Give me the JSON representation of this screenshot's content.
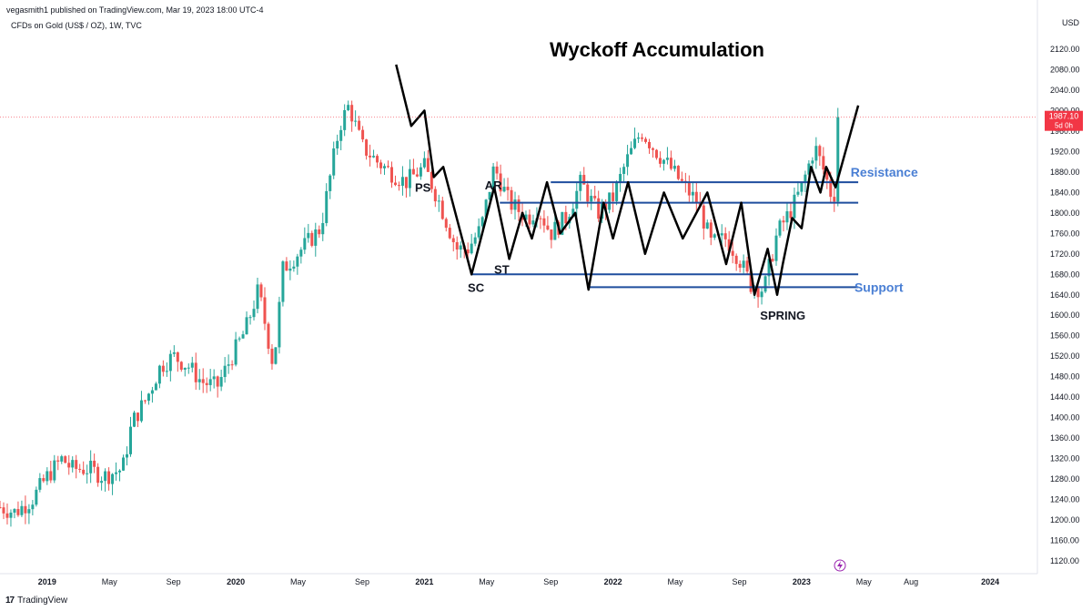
{
  "header": {
    "published": "vegasmith1 published on TradingView.com, Mar 19, 2023 18:00 UTC-4",
    "symbol": "CFDs on Gold (US$ / OZ), 1W, TVC",
    "currency": "USD"
  },
  "footer": {
    "brand": "TradingView",
    "logo_glyph": "17"
  },
  "price_tag": {
    "value": "1987.10",
    "countdown": "5d 0h"
  },
  "colors": {
    "up": "#26a69a",
    "down": "#ef5350",
    "annotation_line": "#1f4e9e",
    "path": "#000000",
    "accent_label": "#4a7fd4",
    "last_price": "#f23645"
  },
  "chart_data": {
    "type": "candlestick",
    "title": "Wyckoff Accumulation",
    "xlabel": "",
    "ylabel": "USD",
    "ylim": [
      1100,
      2160
    ],
    "y_ticks": [
      1120,
      1160,
      1200,
      1240,
      1280,
      1320,
      1360,
      1400,
      1440,
      1480,
      1520,
      1560,
      1600,
      1640,
      1680,
      1720,
      1760,
      1800,
      1840,
      1880,
      1920,
      1960,
      2000,
      2040,
      2080,
      2120
    ],
    "x_ticks": [
      {
        "label": "2019",
        "t": 2019.0,
        "bold": true
      },
      {
        "label": "May",
        "t": 2019.33,
        "bold": false
      },
      {
        "label": "Sep",
        "t": 2019.67,
        "bold": false
      },
      {
        "label": "2020",
        "t": 2020.0,
        "bold": true
      },
      {
        "label": "May",
        "t": 2020.33,
        "bold": false
      },
      {
        "label": "Sep",
        "t": 2020.67,
        "bold": false
      },
      {
        "label": "2021",
        "t": 2021.0,
        "bold": true
      },
      {
        "label": "May",
        "t": 2021.33,
        "bold": false
      },
      {
        "label": "Sep",
        "t": 2021.67,
        "bold": false
      },
      {
        "label": "2022",
        "t": 2022.0,
        "bold": true
      },
      {
        "label": "May",
        "t": 2022.33,
        "bold": false
      },
      {
        "label": "Sep",
        "t": 2022.67,
        "bold": false
      },
      {
        "label": "2023",
        "t": 2023.0,
        "bold": true
      },
      {
        "label": "May",
        "t": 2023.33,
        "bold": false
      },
      {
        "label": "Aug",
        "t": 2023.58,
        "bold": false
      },
      {
        "label": "2024",
        "t": 2024.0,
        "bold": true
      }
    ],
    "x_range": [
      2018.75,
      2024.25
    ],
    "last_price": 1987.1,
    "price_anchors": [
      [
        2018.75,
        1225
      ],
      [
        2018.83,
        1215
      ],
      [
        2018.92,
        1240
      ],
      [
        2019.0,
        1285
      ],
      [
        2019.08,
        1320
      ],
      [
        2019.13,
        1300
      ],
      [
        2019.22,
        1300
      ],
      [
        2019.3,
        1285
      ],
      [
        2019.4,
        1300
      ],
      [
        2019.45,
        1390
      ],
      [
        2019.53,
        1440
      ],
      [
        2019.6,
        1500
      ],
      [
        2019.67,
        1520
      ],
      [
        2019.75,
        1500
      ],
      [
        2019.82,
        1470
      ],
      [
        2019.9,
        1460
      ],
      [
        2019.98,
        1520
      ],
      [
        2020.05,
        1570
      ],
      [
        2020.12,
        1650
      ],
      [
        2020.2,
        1500
      ],
      [
        2020.25,
        1690
      ],
      [
        2020.35,
        1730
      ],
      [
        2020.45,
        1770
      ],
      [
        2020.55,
        1970
      ],
      [
        2020.6,
        2010
      ],
      [
        2020.67,
        1930
      ],
      [
        2020.75,
        1900
      ],
      [
        2020.82,
        1880
      ],
      [
        2020.9,
        1860
      ],
      [
        2021.0,
        1890
      ],
      [
        2021.08,
        1820
      ],
      [
        2021.17,
        1730
      ],
      [
        2021.23,
        1730
      ],
      [
        2021.3,
        1770
      ],
      [
        2021.37,
        1890
      ],
      [
        2021.45,
        1820
      ],
      [
        2021.55,
        1790
      ],
      [
        2021.6,
        1810
      ],
      [
        2021.67,
        1760
      ],
      [
        2021.75,
        1790
      ],
      [
        2021.83,
        1860
      ],
      [
        2021.92,
        1800
      ],
      [
        2022.0,
        1830
      ],
      [
        2022.07,
        1900
      ],
      [
        2022.15,
        1960
      ],
      [
        2022.23,
        1920
      ],
      [
        2022.3,
        1890
      ],
      [
        2022.38,
        1850
      ],
      [
        2022.45,
        1820
      ],
      [
        2022.52,
        1740
      ],
      [
        2022.6,
        1750
      ],
      [
        2022.67,
        1710
      ],
      [
        2022.73,
        1660
      ],
      [
        2022.8,
        1650
      ],
      [
        2022.87,
        1760
      ],
      [
        2022.95,
        1810
      ],
      [
        2023.0,
        1850
      ],
      [
        2023.07,
        1930
      ],
      [
        2023.12,
        1880
      ],
      [
        2023.17,
        1820
      ],
      [
        2023.2,
        1990
      ]
    ],
    "overlay_path": [
      [
        2020.85,
        2090
      ],
      [
        2020.93,
        1970
      ],
      [
        2021.0,
        2000
      ],
      [
        2021.05,
        1870
      ],
      [
        2021.1,
        1890
      ],
      [
        2021.25,
        1680
      ],
      [
        2021.37,
        1850
      ],
      [
        2021.45,
        1710
      ],
      [
        2021.52,
        1800
      ],
      [
        2021.57,
        1750
      ],
      [
        2021.65,
        1860
      ],
      [
        2021.72,
        1760
      ],
      [
        2021.8,
        1800
      ],
      [
        2021.87,
        1650
      ],
      [
        2021.95,
        1820
      ],
      [
        2022.0,
        1750
      ],
      [
        2022.08,
        1860
      ],
      [
        2022.17,
        1720
      ],
      [
        2022.27,
        1840
      ],
      [
        2022.37,
        1750
      ],
      [
        2022.5,
        1840
      ],
      [
        2022.6,
        1700
      ],
      [
        2022.68,
        1820
      ],
      [
        2022.75,
        1640
      ],
      [
        2022.82,
        1730
      ],
      [
        2022.87,
        1640
      ],
      [
        2022.9,
        1700
      ],
      [
        2022.95,
        1790
      ],
      [
        2023.0,
        1770
      ],
      [
        2023.05,
        1890
      ],
      [
        2023.1,
        1840
      ],
      [
        2023.13,
        1890
      ],
      [
        2023.18,
        1850
      ],
      [
        2023.3,
        2010
      ]
    ],
    "levels": [
      {
        "price": 1860,
        "t0": 2021.67,
        "t1": 2023.3
      },
      {
        "price": 1820,
        "t0": 2021.4,
        "t1": 2023.3
      },
      {
        "price": 1680,
        "t0": 2021.25,
        "t1": 2023.3
      },
      {
        "price": 1655,
        "t0": 2021.87,
        "t1": 2023.3
      }
    ],
    "annotations": [
      {
        "text": "Resistance",
        "t": 2023.26,
        "price": 1880,
        "color": "#4a7fd4"
      },
      {
        "text": "Support",
        "t": 2023.28,
        "price": 1655,
        "color": "#4a7fd4"
      },
      {
        "text": "PS",
        "t": 2020.95,
        "price": 1850,
        "color": "#131722"
      },
      {
        "text": "AR",
        "t": 2021.32,
        "price": 1855,
        "color": "#131722"
      },
      {
        "text": "ST",
        "t": 2021.37,
        "price": 1690,
        "color": "#131722"
      },
      {
        "text": "SC",
        "t": 2021.23,
        "price": 1655,
        "color": "#131722"
      },
      {
        "text": "SPRING",
        "t": 2022.78,
        "price": 1600,
        "color": "#131722"
      }
    ],
    "grid": false,
    "legend": "none"
  }
}
